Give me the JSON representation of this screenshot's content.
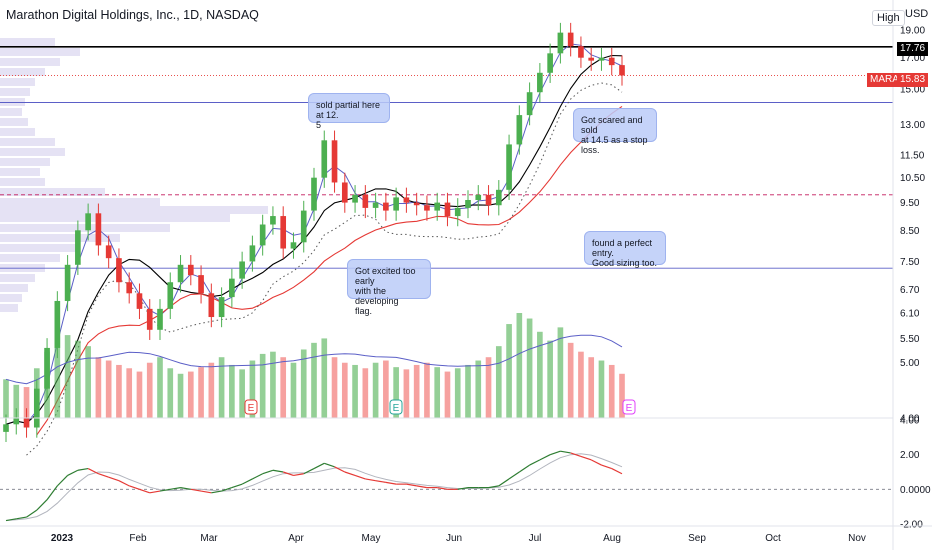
{
  "header": {
    "title": "Marathon Digital Holdings, Inc., 1D, NASDAQ",
    "high_button": "High",
    "currency": "USD"
  },
  "price_tags": {
    "level_label": "17.76",
    "ticker_name": "MARA",
    "ticker_price": "15.83",
    "accent_color": "#e53935",
    "level_color": "#000000"
  },
  "annotations": [
    {
      "text": "sold partial here at 12.\n5"
    },
    {
      "text": "Got scared and sold\nat 14.5 as a stop loss."
    },
    {
      "text": "Got excited too early\nwith the developing\nflag."
    },
    {
      "text": "found a perfect entry.\nGood sizing too."
    }
  ],
  "earnings_markers": [
    "E",
    "E",
    "E"
  ],
  "chart_data": [
    {
      "type": "candlestick",
      "title": "Marathon Digital Holdings, Inc., 1D, NASDAQ",
      "y_scale": "log",
      "y_ticks": [
        "19.00",
        "17.00",
        "15.00",
        "13.00",
        "11.50",
        "10.50",
        "9.50",
        "8.50",
        "7.50",
        "6.70",
        "6.10",
        "5.50",
        "5.00",
        "4.00"
      ],
      "x_ticks": [
        "2023",
        "Feb",
        "Mar",
        "Apr",
        "May",
        "Jun",
        "Jul",
        "Aug",
        "Sep",
        "Oct",
        "Nov"
      ],
      "horizontal_levels": [
        {
          "value": 17.76,
          "style": "solid",
          "color": "#000000"
        },
        {
          "value": 15.83,
          "style": "dotted",
          "color": "#e53935"
        },
        {
          "value": 14.2,
          "style": "solid",
          "color": "#5b5fc7"
        },
        {
          "value": 9.8,
          "style": "dashed",
          "color": "#c2185b"
        },
        {
          "value": 7.3,
          "style": "solid",
          "color": "#5b5fc7"
        }
      ],
      "series": [
        {
          "name": "Close",
          "values": [
            3.9,
            4.0,
            3.85,
            4.5,
            5.3,
            6.4,
            7.4,
            8.5,
            9.1,
            8.0,
            7.6,
            6.9,
            6.6,
            6.2,
            5.7,
            6.2,
            6.9,
            7.4,
            7.1,
            6.6,
            6.0,
            6.5,
            7.0,
            7.5,
            8.0,
            8.7,
            9.0,
            7.9,
            8.1,
            9.2,
            10.5,
            12.2,
            10.3,
            9.5,
            9.8,
            9.3,
            9.5,
            9.2,
            9.7,
            9.5,
            9.4,
            9.2,
            9.5,
            9.0,
            9.3,
            9.6,
            9.8,
            9.4,
            10.0,
            12.0,
            13.5,
            14.8,
            16.0,
            17.3,
            18.8,
            17.8,
            17.0,
            16.8,
            17.0,
            16.5,
            15.83
          ]
        },
        {
          "name": "Volume",
          "values": [
            35,
            30,
            28,
            45,
            60,
            80,
            75,
            70,
            65,
            55,
            52,
            48,
            45,
            42,
            50,
            55,
            45,
            40,
            42,
            46,
            50,
            55,
            48,
            44,
            52,
            58,
            60,
            55,
            50,
            62,
            68,
            72,
            55,
            50,
            48,
            45,
            50,
            52,
            46,
            44,
            48,
            50,
            46,
            42,
            45,
            48,
            52,
            55,
            65,
            85,
            95,
            90,
            78,
            70,
            82,
            68,
            60,
            55,
            52,
            48,
            40
          ]
        },
        {
          "name": "Oscillator",
          "values": [
            -1.8,
            -1.7,
            -1.6,
            -1.2,
            -0.6,
            0.2,
            0.8,
            1.1,
            1.2,
            0.9,
            0.7,
            0.5,
            0.2,
            0.0,
            -0.2,
            -0.1,
            0.0,
            0.1,
            0.0,
            -0.1,
            -0.2,
            -0.1,
            0.1,
            0.3,
            0.6,
            0.9,
            1.1,
            1.0,
            0.8,
            0.9,
            1.2,
            1.5,
            1.3,
            1.0,
            0.8,
            0.6,
            0.5,
            0.4,
            0.3,
            0.3,
            0.2,
            0.1,
            0.1,
            0.0,
            0.0,
            0.1,
            0.1,
            0.1,
            0.2,
            0.6,
            1.0,
            1.4,
            1.7,
            2.0,
            2.2,
            2.1,
            1.9,
            1.7,
            1.4,
            1.2,
            0.9
          ]
        }
      ],
      "oscillator_ticks": [
        "4.00",
        "2.00",
        "0.0000",
        "-2.00"
      ],
      "colors": {
        "up": "#26a69a",
        "down": "#ef5350",
        "candle_up": "#4caf50",
        "candle_down": "#e53935",
        "ma_short": "#5b5fc7",
        "ma_mid": "#000000",
        "ma_long": "#e53935"
      }
    }
  ]
}
